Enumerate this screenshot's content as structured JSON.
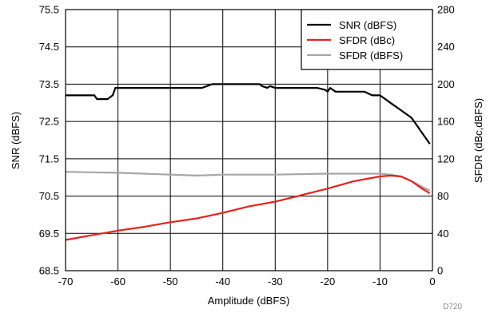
{
  "chart_data": {
    "type": "line",
    "title": "",
    "xlabel": "Amplitude (dBFS)",
    "ylabel_left": "SNR (dBFS)",
    "ylabel_right": "SFDR (dBc,dBFS)",
    "xlim": [
      -70,
      0
    ],
    "ylim_left": [
      68.5,
      75.5
    ],
    "ylim_right": [
      0,
      280
    ],
    "x_ticks": [
      "-70",
      "-60",
      "-50",
      "-40",
      "-30",
      "-20",
      "-10",
      "0"
    ],
    "y_left_ticks": [
      "68.5",
      "69.5",
      "70.5",
      "71.5",
      "72.5",
      "73.5",
      "74.5",
      "75.5"
    ],
    "y_right_ticks": [
      "0",
      "40",
      "80",
      "120",
      "160",
      "200",
      "240",
      "280"
    ],
    "grid": true,
    "legend_position": "top-right",
    "figure_id": "D720",
    "series": [
      {
        "name": "SNR (dBFS)",
        "axis": "left",
        "color": "#000000",
        "x": [
          -70,
          -64.5,
          -64,
          -62,
          -61,
          -60.5,
          -56,
          -50,
          -44,
          -43,
          -42,
          -35,
          -33,
          -32.5,
          -31.5,
          -31,
          -30,
          -28,
          -22,
          -20.5,
          -20,
          -19.5,
          -18.5,
          -14,
          -13,
          -11.5,
          -10,
          -8,
          -6,
          -4,
          -3,
          -2,
          -1,
          -0.5
        ],
        "y": [
          73.2,
          73.2,
          73.1,
          73.1,
          73.2,
          73.4,
          73.4,
          73.4,
          73.4,
          73.45,
          73.5,
          73.5,
          73.5,
          73.45,
          73.4,
          73.45,
          73.4,
          73.4,
          73.4,
          73.35,
          73.3,
          73.4,
          73.3,
          73.3,
          73.3,
          73.2,
          73.2,
          73.0,
          72.8,
          72.6,
          72.4,
          72.2,
          72.0,
          71.9
        ]
      },
      {
        "name": "SFDR (dBc)",
        "axis": "right",
        "color": "#e8211d",
        "x": [
          -70,
          -65,
          -60,
          -55,
          -50,
          -45,
          -40,
          -35,
          -30,
          -25,
          -20,
          -15,
          -10,
          -8,
          -6,
          -4,
          -2,
          -0.5
        ],
        "y": [
          33,
          38,
          43,
          47,
          52,
          56,
          62,
          69,
          74,
          81,
          88,
          96,
          101,
          102,
          101,
          96,
          88,
          83
        ]
      },
      {
        "name": "SFDR (dBFS)",
        "axis": "right",
        "color": "#a6a6a6",
        "x": [
          -70,
          -60,
          -50,
          -45,
          -40,
          -30,
          -20,
          -15,
          -10,
          -8,
          -6,
          -4,
          -2,
          -0.5
        ],
        "y": [
          106,
          105,
          103,
          102,
          103,
          103,
          104,
          104,
          104,
          103,
          101,
          96,
          90,
          86
        ]
      }
    ]
  }
}
